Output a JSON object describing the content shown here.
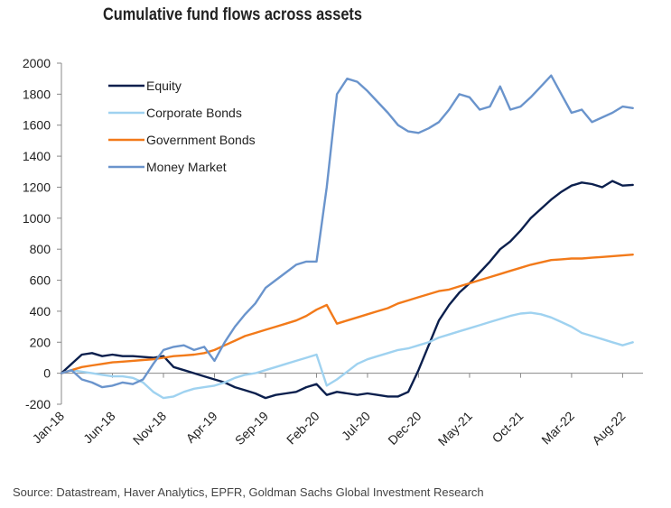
{
  "chart_data": {
    "type": "line",
    "title": "Cumulative fund flows across assets",
    "source": "Source: Datastream, Haver Analytics, EPFR, Goldman Sachs Global Investment Research",
    "xlabel": "",
    "ylabel": "",
    "ylim": [
      -200,
      2000
    ],
    "yticks": [
      2000,
      1800,
      1600,
      1400,
      1200,
      1000,
      800,
      600,
      400,
      200,
      0,
      -200
    ],
    "xlim": [
      "2018-01",
      "2022-10"
    ],
    "xticks": [
      {
        "label": "Jan-18",
        "date": "2018-01"
      },
      {
        "label": "Jun-18",
        "date": "2018-06"
      },
      {
        "label": "Nov-18",
        "date": "2018-11"
      },
      {
        "label": "Apr-19",
        "date": "2019-04"
      },
      {
        "label": "Sep-19",
        "date": "2019-09"
      },
      {
        "label": "Feb-20",
        "date": "2020-02"
      },
      {
        "label": "Jul-20",
        "date": "2020-07"
      },
      {
        "label": "Dec-20",
        "date": "2020-12"
      },
      {
        "label": "May-21",
        "date": "2021-05"
      },
      {
        "label": "Oct-21",
        "date": "2021-10"
      },
      {
        "label": "Mar-22",
        "date": "2022-03"
      },
      {
        "label": "Aug-22",
        "date": "2022-08"
      }
    ],
    "grid": false,
    "legend_position": "top-left",
    "series": [
      {
        "name": "Equity",
        "color": "#0b1f4d",
        "points": [
          [
            "2018-01",
            0
          ],
          [
            "2018-02",
            60
          ],
          [
            "2018-03",
            120
          ],
          [
            "2018-04",
            130
          ],
          [
            "2018-05",
            110
          ],
          [
            "2018-06",
            120
          ],
          [
            "2018-07",
            110
          ],
          [
            "2018-08",
            110
          ],
          [
            "2018-09",
            105
          ],
          [
            "2018-10",
            100
          ],
          [
            "2018-11",
            110
          ],
          [
            "2018-12",
            40
          ],
          [
            "2019-01",
            20
          ],
          [
            "2019-02",
            0
          ],
          [
            "2019-03",
            -20
          ],
          [
            "2019-04",
            -40
          ],
          [
            "2019-05",
            -60
          ],
          [
            "2019-06",
            -90
          ],
          [
            "2019-07",
            -110
          ],
          [
            "2019-08",
            -130
          ],
          [
            "2019-09",
            -160
          ],
          [
            "2019-10",
            -140
          ],
          [
            "2019-11",
            -130
          ],
          [
            "2019-12",
            -120
          ],
          [
            "2020-01",
            -90
          ],
          [
            "2020-02",
            -70
          ],
          [
            "2020-03",
            -140
          ],
          [
            "2020-04",
            -120
          ],
          [
            "2020-05",
            -130
          ],
          [
            "2020-06",
            -140
          ],
          [
            "2020-07",
            -130
          ],
          [
            "2020-08",
            -140
          ],
          [
            "2020-09",
            -150
          ],
          [
            "2020-10",
            -150
          ],
          [
            "2020-11",
            -120
          ],
          [
            "2020-12",
            20
          ],
          [
            "2021-01",
            180
          ],
          [
            "2021-02",
            340
          ],
          [
            "2021-03",
            440
          ],
          [
            "2021-04",
            520
          ],
          [
            "2021-05",
            580
          ],
          [
            "2021-06",
            650
          ],
          [
            "2021-07",
            720
          ],
          [
            "2021-08",
            800
          ],
          [
            "2021-09",
            850
          ],
          [
            "2021-10",
            920
          ],
          [
            "2021-11",
            1000
          ],
          [
            "2021-12",
            1060
          ],
          [
            "2022-01",
            1120
          ],
          [
            "2022-02",
            1170
          ],
          [
            "2022-03",
            1210
          ],
          [
            "2022-04",
            1230
          ],
          [
            "2022-05",
            1220
          ],
          [
            "2022-06",
            1200
          ],
          [
            "2022-07",
            1240
          ],
          [
            "2022-08",
            1210
          ],
          [
            "2022-09",
            1215
          ]
        ]
      },
      {
        "name": "Corporate Bonds",
        "color": "#9fd2f0",
        "points": [
          [
            "2018-01",
            0
          ],
          [
            "2018-02",
            20
          ],
          [
            "2018-03",
            10
          ],
          [
            "2018-04",
            0
          ],
          [
            "2018-05",
            -10
          ],
          [
            "2018-06",
            -20
          ],
          [
            "2018-07",
            -20
          ],
          [
            "2018-08",
            -30
          ],
          [
            "2018-09",
            -60
          ],
          [
            "2018-10",
            -120
          ],
          [
            "2018-11",
            -160
          ],
          [
            "2018-12",
            -150
          ],
          [
            "2019-01",
            -120
          ],
          [
            "2019-02",
            -100
          ],
          [
            "2019-03",
            -90
          ],
          [
            "2019-04",
            -80
          ],
          [
            "2019-05",
            -60
          ],
          [
            "2019-06",
            -30
          ],
          [
            "2019-07",
            -10
          ],
          [
            "2019-08",
            0
          ],
          [
            "2019-09",
            20
          ],
          [
            "2019-10",
            40
          ],
          [
            "2019-11",
            60
          ],
          [
            "2019-12",
            80
          ],
          [
            "2020-01",
            100
          ],
          [
            "2020-02",
            120
          ],
          [
            "2020-03",
            -80
          ],
          [
            "2020-04",
            -40
          ],
          [
            "2020-05",
            10
          ],
          [
            "2020-06",
            60
          ],
          [
            "2020-07",
            90
          ],
          [
            "2020-08",
            110
          ],
          [
            "2020-09",
            130
          ],
          [
            "2020-10",
            150
          ],
          [
            "2020-11",
            160
          ],
          [
            "2020-12",
            180
          ],
          [
            "2021-01",
            200
          ],
          [
            "2021-02",
            230
          ],
          [
            "2021-03",
            250
          ],
          [
            "2021-04",
            270
          ],
          [
            "2021-05",
            290
          ],
          [
            "2021-06",
            310
          ],
          [
            "2021-07",
            330
          ],
          [
            "2021-08",
            350
          ],
          [
            "2021-09",
            370
          ],
          [
            "2021-10",
            385
          ],
          [
            "2021-11",
            390
          ],
          [
            "2021-12",
            380
          ],
          [
            "2022-01",
            360
          ],
          [
            "2022-02",
            330
          ],
          [
            "2022-03",
            300
          ],
          [
            "2022-04",
            260
          ],
          [
            "2022-05",
            240
          ],
          [
            "2022-06",
            220
          ],
          [
            "2022-07",
            200
          ],
          [
            "2022-08",
            180
          ],
          [
            "2022-09",
            200
          ]
        ]
      },
      {
        "name": "Government Bonds",
        "color": "#f27a1a",
        "points": [
          [
            "2018-01",
            0
          ],
          [
            "2018-02",
            20
          ],
          [
            "2018-03",
            40
          ],
          [
            "2018-04",
            50
          ],
          [
            "2018-05",
            60
          ],
          [
            "2018-06",
            70
          ],
          [
            "2018-07",
            75
          ],
          [
            "2018-08",
            80
          ],
          [
            "2018-09",
            85
          ],
          [
            "2018-10",
            90
          ],
          [
            "2018-11",
            100
          ],
          [
            "2018-12",
            110
          ],
          [
            "2019-01",
            115
          ],
          [
            "2019-02",
            120
          ],
          [
            "2019-03",
            130
          ],
          [
            "2019-04",
            150
          ],
          [
            "2019-05",
            180
          ],
          [
            "2019-06",
            210
          ],
          [
            "2019-07",
            240
          ],
          [
            "2019-08",
            260
          ],
          [
            "2019-09",
            280
          ],
          [
            "2019-10",
            300
          ],
          [
            "2019-11",
            320
          ],
          [
            "2019-12",
            340
          ],
          [
            "2020-01",
            370
          ],
          [
            "2020-02",
            410
          ],
          [
            "2020-03",
            440
          ],
          [
            "2020-04",
            320
          ],
          [
            "2020-05",
            340
          ],
          [
            "2020-06",
            360
          ],
          [
            "2020-07",
            380
          ],
          [
            "2020-08",
            400
          ],
          [
            "2020-09",
            420
          ],
          [
            "2020-10",
            450
          ],
          [
            "2020-11",
            470
          ],
          [
            "2020-12",
            490
          ],
          [
            "2021-01",
            510
          ],
          [
            "2021-02",
            530
          ],
          [
            "2021-03",
            540
          ],
          [
            "2021-04",
            560
          ],
          [
            "2021-05",
            580
          ],
          [
            "2021-06",
            600
          ],
          [
            "2021-07",
            620
          ],
          [
            "2021-08",
            640
          ],
          [
            "2021-09",
            660
          ],
          [
            "2021-10",
            680
          ],
          [
            "2021-11",
            700
          ],
          [
            "2021-12",
            715
          ],
          [
            "2022-01",
            730
          ],
          [
            "2022-02",
            735
          ],
          [
            "2022-03",
            740
          ],
          [
            "2022-04",
            740
          ],
          [
            "2022-05",
            745
          ],
          [
            "2022-06",
            750
          ],
          [
            "2022-07",
            755
          ],
          [
            "2022-08",
            760
          ],
          [
            "2022-09",
            765
          ]
        ]
      },
      {
        "name": "Money Market",
        "color": "#6a94cc",
        "points": [
          [
            "2018-01",
            0
          ],
          [
            "2018-02",
            20
          ],
          [
            "2018-03",
            -40
          ],
          [
            "2018-04",
            -60
          ],
          [
            "2018-05",
            -90
          ],
          [
            "2018-06",
            -80
          ],
          [
            "2018-07",
            -60
          ],
          [
            "2018-08",
            -70
          ],
          [
            "2018-09",
            -40
          ],
          [
            "2018-10",
            60
          ],
          [
            "2018-11",
            150
          ],
          [
            "2018-12",
            170
          ],
          [
            "2019-01",
            180
          ],
          [
            "2019-02",
            150
          ],
          [
            "2019-03",
            170
          ],
          [
            "2019-04",
            80
          ],
          [
            "2019-05",
            200
          ],
          [
            "2019-06",
            300
          ],
          [
            "2019-07",
            380
          ],
          [
            "2019-08",
            450
          ],
          [
            "2019-09",
            550
          ],
          [
            "2019-10",
            600
          ],
          [
            "2019-11",
            650
          ],
          [
            "2019-12",
            700
          ],
          [
            "2020-01",
            720
          ],
          [
            "2020-02",
            720
          ],
          [
            "2020-03",
            1200
          ],
          [
            "2020-04",
            1800
          ],
          [
            "2020-05",
            1900
          ],
          [
            "2020-06",
            1880
          ],
          [
            "2020-07",
            1820
          ],
          [
            "2020-08",
            1750
          ],
          [
            "2020-09",
            1680
          ],
          [
            "2020-10",
            1600
          ],
          [
            "2020-11",
            1560
          ],
          [
            "2020-12",
            1550
          ],
          [
            "2021-01",
            1580
          ],
          [
            "2021-02",
            1620
          ],
          [
            "2021-03",
            1700
          ],
          [
            "2021-04",
            1800
          ],
          [
            "2021-05",
            1780
          ],
          [
            "2021-06",
            1700
          ],
          [
            "2021-07",
            1720
          ],
          [
            "2021-08",
            1850
          ],
          [
            "2021-09",
            1700
          ],
          [
            "2021-10",
            1720
          ],
          [
            "2021-11",
            1780
          ],
          [
            "2021-12",
            1850
          ],
          [
            "2022-01",
            1920
          ],
          [
            "2022-02",
            1800
          ],
          [
            "2022-03",
            1680
          ],
          [
            "2022-04",
            1700
          ],
          [
            "2022-05",
            1620
          ],
          [
            "2022-06",
            1650
          ],
          [
            "2022-07",
            1680
          ],
          [
            "2022-08",
            1720
          ],
          [
            "2022-09",
            1710
          ]
        ]
      }
    ]
  }
}
